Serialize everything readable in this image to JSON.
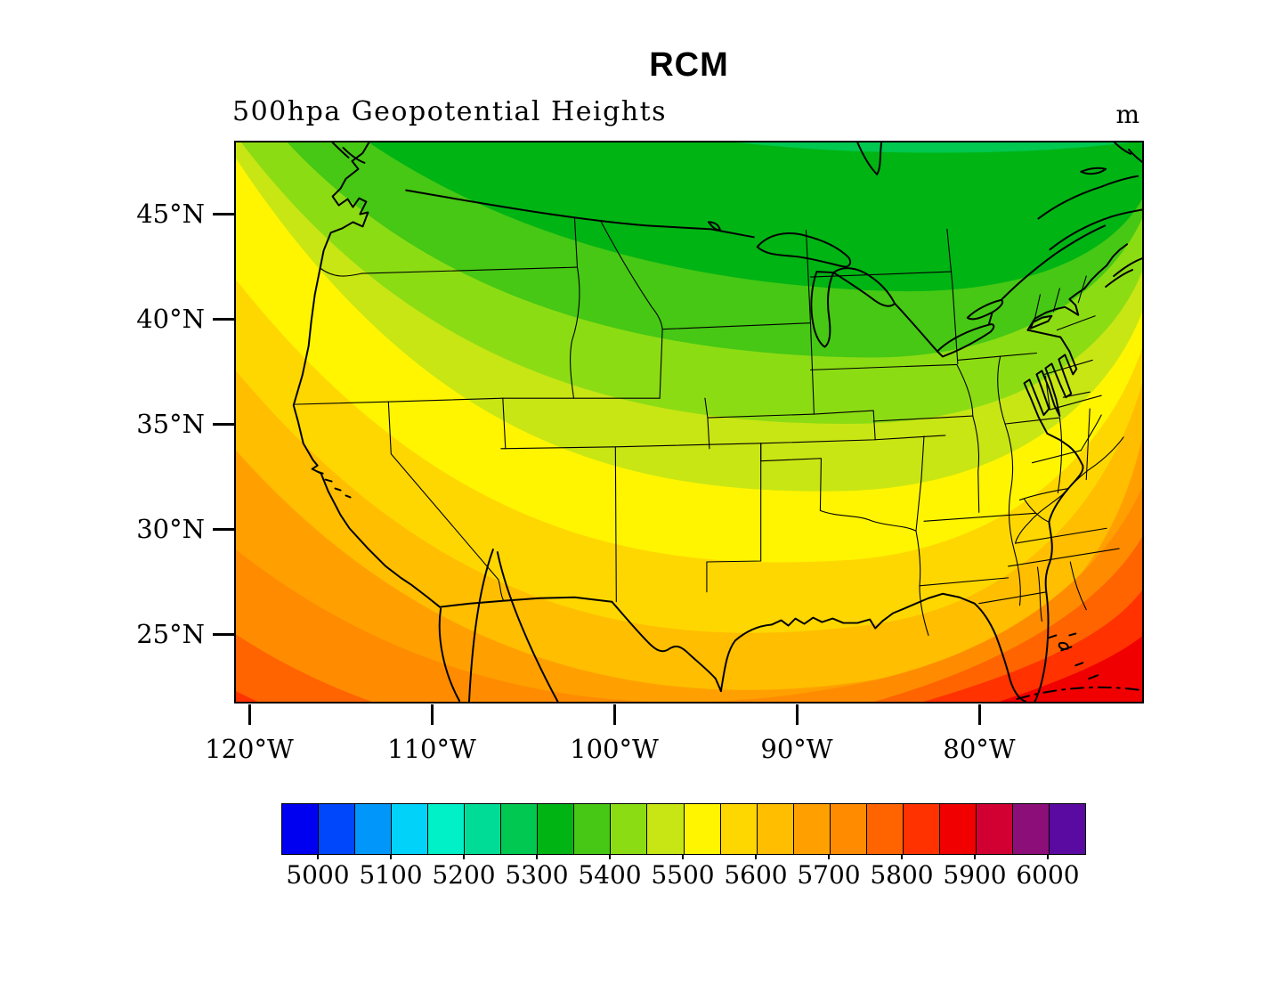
{
  "title": "RCM",
  "subtitle": "500hpa Geopotential Heights",
  "units_label": "m",
  "map": {
    "lat_ticks": [
      "45°N",
      "40°N",
      "35°N",
      "30°N",
      "25°N"
    ],
    "lon_ticks": [
      "120°W",
      "110°W",
      "100°W",
      "90°W",
      "80°W"
    ],
    "region": "Continental United States with adjacent Canada, Mexico and western Atlantic"
  },
  "chart_data": {
    "type": "heatmap",
    "subtype": "filled-contour map",
    "title": "500hpa Geopotential Heights",
    "model_label": "RCM",
    "units": "m",
    "xlabel_ticks": [
      "120°W",
      "110°W",
      "100°W",
      "90°W",
      "80°W"
    ],
    "ylabel_ticks": [
      "45°N",
      "40°N",
      "35°N",
      "30°N",
      "25°N"
    ],
    "contour_interval": 50,
    "colorbar_tick_labels": [
      "5000",
      "5100",
      "5200",
      "5300",
      "5400",
      "5500",
      "5600",
      "5700",
      "5800",
      "5900",
      "6000"
    ],
    "colorbar_colors": [
      "#0000F0",
      "#0046FA",
      "#0096FA",
      "#00D2FA",
      "#00F0C8",
      "#00DC96",
      "#00C850",
      "#00B414",
      "#46C814",
      "#8CDC14",
      "#C8E614",
      "#FFF500",
      "#FFD700",
      "#FFBE00",
      "#FFA000",
      "#FF8C00",
      "#FF6400",
      "#FF3200",
      "#F00000",
      "#D20032",
      "#8C0E78",
      "#5A0AA0"
    ],
    "field_summary": {
      "min_value_approx": 5250,
      "min_location": "along northern boundary, north-central part of domain",
      "max_value_approx": 5900,
      "max_location": "southeast corner of domain (Florida / Bahamas)",
      "corner_values_approx": {
        "northwest": 5480,
        "northeast": 5320,
        "southwest": 5790,
        "southeast": 5880
      },
      "pattern": "Geopotential heights increase from a trough of low values (~5250 m, green) along the northern edge toward high values (~5850-5900 m, red) over the Gulf of Mexico, Baja California and the western Atlantic; bands run roughly west-east, bowing southward over the central US."
    },
    "legend_position": "bottom horizontal colorbar",
    "grid": false
  }
}
